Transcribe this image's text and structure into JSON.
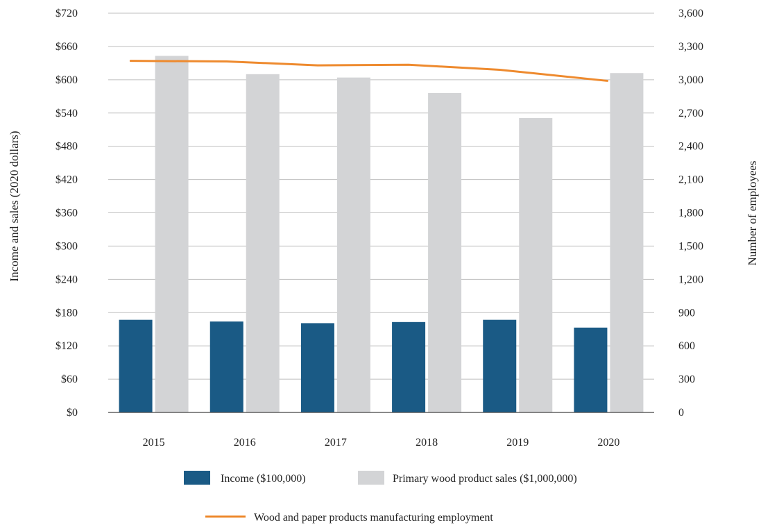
{
  "chart_data": {
    "type": "bar",
    "categories": [
      "2015",
      "2016",
      "2017",
      "2018",
      "2019",
      "2020"
    ],
    "series": [
      {
        "name": "Income ($100,000)",
        "kind": "bar",
        "axis": "left",
        "color": "#1a5a85",
        "values": [
          167,
          164,
          161,
          163,
          167,
          153
        ]
      },
      {
        "name": "Primary wood product sales ($1,000,000)",
        "kind": "bar",
        "axis": "left",
        "color": "#d3d4d6",
        "values": [
          643,
          610,
          604,
          576,
          531,
          612
        ]
      },
      {
        "name": "Wood and paper products manufacturing employment",
        "kind": "line",
        "axis": "right",
        "color": "#ee8a2e",
        "values": [
          3170,
          3165,
          3130,
          3135,
          3090,
          2990
        ]
      }
    ],
    "ylabel": "Income and sales (2020 dollars)",
    "y2label": "Number of employees",
    "ylim": [
      0,
      720
    ],
    "y2lim": [
      0,
      3600
    ],
    "yticks": [
      "$0",
      "$60",
      "$120",
      "$180",
      "$240",
      "$300",
      "$360",
      "$420",
      "$480",
      "$540",
      "$600",
      "$660",
      "$720"
    ],
    "y2ticks": [
      "0",
      "300",
      "600",
      "900",
      "1,200",
      "1,500",
      "1,800",
      "2,100",
      "2,400",
      "2,700",
      "3,000",
      "3,300",
      "3,600"
    ],
    "grid": true,
    "legend": "bottom"
  }
}
